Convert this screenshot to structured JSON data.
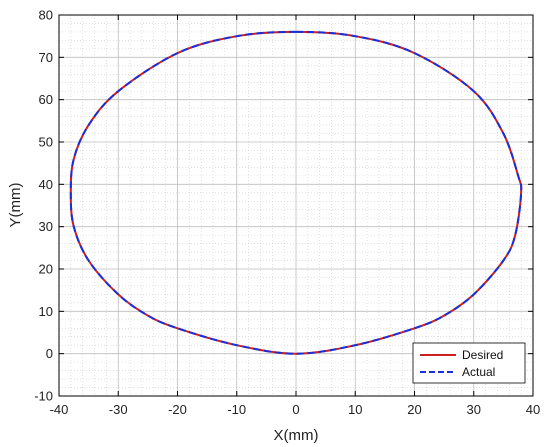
{
  "chart_data": {
    "type": "line",
    "title": "",
    "xlabel": "X(mm)",
    "ylabel": "Y(mm)",
    "xlim": [
      -40,
      40
    ],
    "ylim": [
      -10,
      80
    ],
    "xticks": [
      -40,
      -30,
      -20,
      -10,
      0,
      10,
      20,
      30,
      40
    ],
    "yticks": [
      -10,
      0,
      10,
      20,
      30,
      40,
      50,
      60,
      70,
      80
    ],
    "xtick_labels": [
      "-40",
      "-30",
      "-20",
      "-10",
      "0",
      "10",
      "20",
      "30",
      "40"
    ],
    "ytick_labels": [
      "-10",
      "0",
      "10",
      "20",
      "30",
      "40",
      "50",
      "60",
      "70",
      "80"
    ],
    "grid": true,
    "minor_grid": true,
    "legend_position": "bottom-right",
    "series": [
      {
        "name": "Desired",
        "color": "#cc1f1f",
        "style": "solid",
        "x": [
          0,
          10,
          20,
          30,
          35,
          37.5,
          38,
          37,
          35,
          30,
          25,
          20,
          10,
          0,
          -10,
          -20,
          -25,
          -30,
          -35,
          -37.5,
          -38,
          -37.5,
          -35,
          -30,
          -20,
          -10,
          0
        ],
        "y": [
          76,
          75,
          71,
          62,
          52,
          42,
          38,
          28,
          22,
          14,
          9,
          6,
          2,
          0,
          2,
          6,
          9,
          14,
          22,
          30,
          38,
          46,
          54,
          62,
          71,
          75,
          76
        ]
      },
      {
        "name": "Actual",
        "color": "#1a2fd6",
        "style": "dashed",
        "x": [
          0,
          10,
          20,
          30,
          35,
          37.5,
          38,
          37,
          35,
          30,
          25,
          20,
          10,
          0,
          -10,
          -20,
          -25,
          -30,
          -35,
          -37.5,
          -38,
          -37.5,
          -35,
          -30,
          -20,
          -10,
          0
        ],
        "y": [
          76,
          75,
          71,
          62,
          52,
          42,
          38,
          28,
          22,
          14,
          9,
          6,
          2,
          0,
          2,
          6,
          9,
          14,
          22,
          30,
          38,
          46,
          54,
          62,
          71,
          75,
          76
        ]
      }
    ]
  }
}
